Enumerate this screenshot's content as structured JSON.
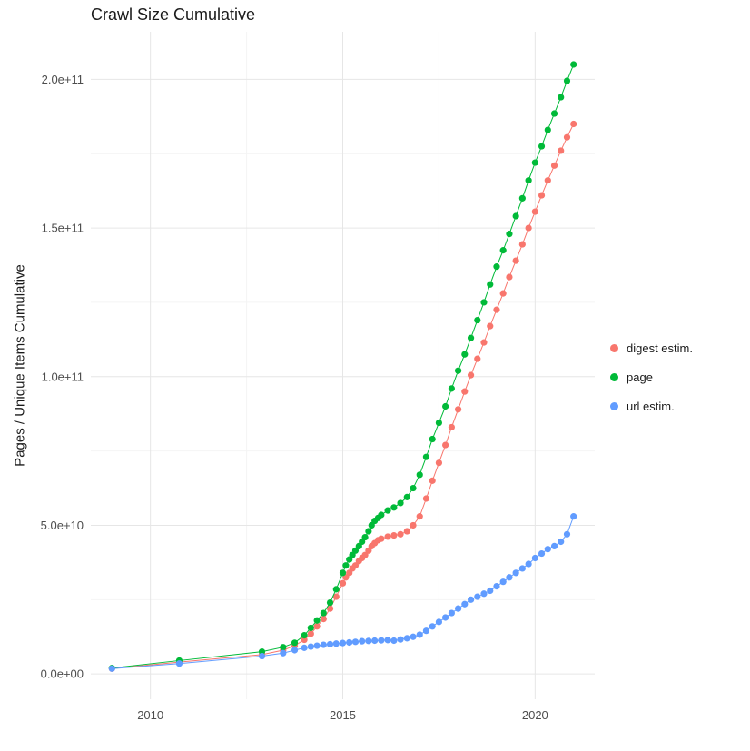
{
  "chart_data": {
    "type": "scatter",
    "title": "Crawl Size Cumulative",
    "xlabel": "",
    "ylabel": "Pages / Unique Items Cumulative",
    "legend_position": "right",
    "grid": {
      "on": true,
      "major_color": "#e6e6e6",
      "minor_color": "#f4f4f4"
    },
    "xlim": [
      2008.45,
      2021.55
    ],
    "ylim": [
      -8500000000.0,
      216000000000.0
    ],
    "x_ticks": [
      {
        "v": 2010,
        "label": "2010"
      },
      {
        "v": 2015,
        "label": "2015"
      },
      {
        "v": 2020,
        "label": "2020"
      }
    ],
    "x_minor": [
      2012.5,
      2017.5
    ],
    "y_ticks": [
      {
        "v": 0,
        "label": "0.0e+00"
      },
      {
        "v": 50000000000.0,
        "label": "5.0e+10"
      },
      {
        "v": 100000000000.0,
        "label": "1.0e+11"
      },
      {
        "v": 150000000000.0,
        "label": "1.5e+11"
      },
      {
        "v": 200000000000.0,
        "label": "2.0e+11"
      }
    ],
    "y_minor": [
      25000000000.0,
      75000000000.0,
      125000000000.0,
      175000000000.0
    ],
    "series": [
      {
        "name": "digest estim.",
        "color": "#F8766D",
        "points": [
          [
            2009.0,
            1800000000.0
          ],
          [
            2010.75,
            4000000000.0
          ],
          [
            2012.9,
            6500000000.0
          ],
          [
            2013.45,
            8000000000.0
          ],
          [
            2013.75,
            9500000000.0
          ],
          [
            2014.0,
            11500000000.0
          ],
          [
            2014.17,
            13500000000.0
          ],
          [
            2014.33,
            16000000000.0
          ],
          [
            2014.5,
            18500000000.0
          ],
          [
            2014.67,
            22000000000.0
          ],
          [
            2014.83,
            26000000000.0
          ],
          [
            2015.0,
            30500000000.0
          ],
          [
            2015.08,
            32500000000.0
          ],
          [
            2015.17,
            34000000000.0
          ],
          [
            2015.25,
            35500000000.0
          ],
          [
            2015.33,
            36500000000.0
          ],
          [
            2015.42,
            38000000000.0
          ],
          [
            2015.5,
            39000000000.0
          ],
          [
            2015.58,
            40000000000.0
          ],
          [
            2015.67,
            41500000000.0
          ],
          [
            2015.75,
            43000000000.0
          ],
          [
            2015.83,
            44000000000.0
          ],
          [
            2015.92,
            45000000000.0
          ],
          [
            2016.0,
            45500000000.0
          ],
          [
            2016.17,
            46200000000.0
          ],
          [
            2016.33,
            46600000000.0
          ],
          [
            2016.5,
            47000000000.0
          ],
          [
            2016.67,
            48000000000.0
          ],
          [
            2016.83,
            50000000000.0
          ],
          [
            2017.0,
            53000000000.0
          ],
          [
            2017.17,
            59000000000.0
          ],
          [
            2017.33,
            65000000000.0
          ],
          [
            2017.5,
            71000000000.0
          ],
          [
            2017.67,
            77000000000.0
          ],
          [
            2017.83,
            83000000000.0
          ],
          [
            2018.0,
            89000000000.0
          ],
          [
            2018.17,
            95000000000.0
          ],
          [
            2018.33,
            100500000000.0
          ],
          [
            2018.5,
            106000000000.0
          ],
          [
            2018.67,
            111500000000.0
          ],
          [
            2018.83,
            117000000000.0
          ],
          [
            2019.0,
            122500000000.0
          ],
          [
            2019.17,
            128000000000.0
          ],
          [
            2019.33,
            133500000000.0
          ],
          [
            2019.5,
            139000000000.0
          ],
          [
            2019.67,
            144500000000.0
          ],
          [
            2019.83,
            150000000000.0
          ],
          [
            2020.0,
            155500000000.0
          ],
          [
            2020.17,
            161000000000.0
          ],
          [
            2020.33,
            166000000000.0
          ],
          [
            2020.5,
            171000000000.0
          ],
          [
            2020.67,
            176000000000.0
          ],
          [
            2020.83,
            180500000000.0
          ],
          [
            2021.0,
            185000000000.0
          ]
        ]
      },
      {
        "name": "page",
        "color": "#00BA38",
        "points": [
          [
            2009.0,
            2000000000.0
          ],
          [
            2010.75,
            4500000000.0
          ],
          [
            2012.9,
            7500000000.0
          ],
          [
            2013.45,
            9000000000.0
          ],
          [
            2013.75,
            10500000000.0
          ],
          [
            2014.0,
            13000000000.0
          ],
          [
            2014.17,
            15500000000.0
          ],
          [
            2014.33,
            18000000000.0
          ],
          [
            2014.5,
            20500000000.0
          ],
          [
            2014.67,
            24000000000.0
          ],
          [
            2014.83,
            28500000000.0
          ],
          [
            2015.0,
            34000000000.0
          ],
          [
            2015.08,
            36500000000.0
          ],
          [
            2015.17,
            38500000000.0
          ],
          [
            2015.25,
            40000000000.0
          ],
          [
            2015.33,
            41500000000.0
          ],
          [
            2015.42,
            43000000000.0
          ],
          [
            2015.5,
            44500000000.0
          ],
          [
            2015.58,
            46000000000.0
          ],
          [
            2015.67,
            48000000000.0
          ],
          [
            2015.75,
            50000000000.0
          ],
          [
            2015.83,
            51500000000.0
          ],
          [
            2015.92,
            52500000000.0
          ],
          [
            2016.0,
            53500000000.0
          ],
          [
            2016.17,
            55000000000.0
          ],
          [
            2016.33,
            56000000000.0
          ],
          [
            2016.5,
            57500000000.0
          ],
          [
            2016.67,
            59500000000.0
          ],
          [
            2016.83,
            62500000000.0
          ],
          [
            2017.0,
            67000000000.0
          ],
          [
            2017.17,
            73000000000.0
          ],
          [
            2017.33,
            79000000000.0
          ],
          [
            2017.5,
            84500000000.0
          ],
          [
            2017.67,
            90000000000.0
          ],
          [
            2017.83,
            96000000000.0
          ],
          [
            2018.0,
            102000000000.0
          ],
          [
            2018.17,
            107500000000.0
          ],
          [
            2018.33,
            113000000000.0
          ],
          [
            2018.5,
            119000000000.0
          ],
          [
            2018.67,
            125000000000.0
          ],
          [
            2018.83,
            131000000000.0
          ],
          [
            2019.0,
            137000000000.0
          ],
          [
            2019.17,
            142500000000.0
          ],
          [
            2019.33,
            148000000000.0
          ],
          [
            2019.5,
            154000000000.0
          ],
          [
            2019.67,
            160000000000.0
          ],
          [
            2019.83,
            166000000000.0
          ],
          [
            2020.0,
            172000000000.0
          ],
          [
            2020.17,
            177500000000.0
          ],
          [
            2020.33,
            183000000000.0
          ],
          [
            2020.5,
            188500000000.0
          ],
          [
            2020.67,
            194000000000.0
          ],
          [
            2020.83,
            199500000000.0
          ],
          [
            2021.0,
            205000000000.0
          ]
        ]
      },
      {
        "name": "url estim.",
        "color": "#619CFF",
        "points": [
          [
            2009.0,
            1800000000.0
          ],
          [
            2010.75,
            3500000000.0
          ],
          [
            2012.9,
            6000000000.0
          ],
          [
            2013.45,
            7000000000.0
          ],
          [
            2013.75,
            8000000000.0
          ],
          [
            2014.0,
            8800000000.0
          ],
          [
            2014.17,
            9200000000.0
          ],
          [
            2014.33,
            9500000000.0
          ],
          [
            2014.5,
            9800000000.0
          ],
          [
            2014.67,
            10000000000.0
          ],
          [
            2014.83,
            10200000000.0
          ],
          [
            2015.0,
            10400000000.0
          ],
          [
            2015.17,
            10600000000.0
          ],
          [
            2015.33,
            10800000000.0
          ],
          [
            2015.5,
            11000000000.0
          ],
          [
            2015.67,
            11100000000.0
          ],
          [
            2015.83,
            11200000000.0
          ],
          [
            2016.0,
            11300000000.0
          ],
          [
            2016.17,
            11400000000.0
          ],
          [
            2016.33,
            11200000000.0
          ],
          [
            2016.5,
            11600000000.0
          ],
          [
            2016.67,
            12000000000.0
          ],
          [
            2016.83,
            12500000000.0
          ],
          [
            2017.0,
            13200000000.0
          ],
          [
            2017.17,
            14500000000.0
          ],
          [
            2017.33,
            16000000000.0
          ],
          [
            2017.5,
            17500000000.0
          ],
          [
            2017.67,
            19000000000.0
          ],
          [
            2017.83,
            20500000000.0
          ],
          [
            2018.0,
            22000000000.0
          ],
          [
            2018.17,
            23500000000.0
          ],
          [
            2018.33,
            25000000000.0
          ],
          [
            2018.5,
            26000000000.0
          ],
          [
            2018.67,
            27000000000.0
          ],
          [
            2018.83,
            28000000000.0
          ],
          [
            2019.0,
            29500000000.0
          ],
          [
            2019.17,
            31000000000.0
          ],
          [
            2019.33,
            32500000000.0
          ],
          [
            2019.5,
            34000000000.0
          ],
          [
            2019.67,
            35500000000.0
          ],
          [
            2019.83,
            37000000000.0
          ],
          [
            2020.0,
            39000000000.0
          ],
          [
            2020.17,
            40500000000.0
          ],
          [
            2020.33,
            42000000000.0
          ],
          [
            2020.5,
            43000000000.0
          ],
          [
            2020.67,
            44500000000.0
          ],
          [
            2020.83,
            47000000000.0
          ],
          [
            2021.0,
            53000000000.0
          ]
        ]
      }
    ]
  }
}
